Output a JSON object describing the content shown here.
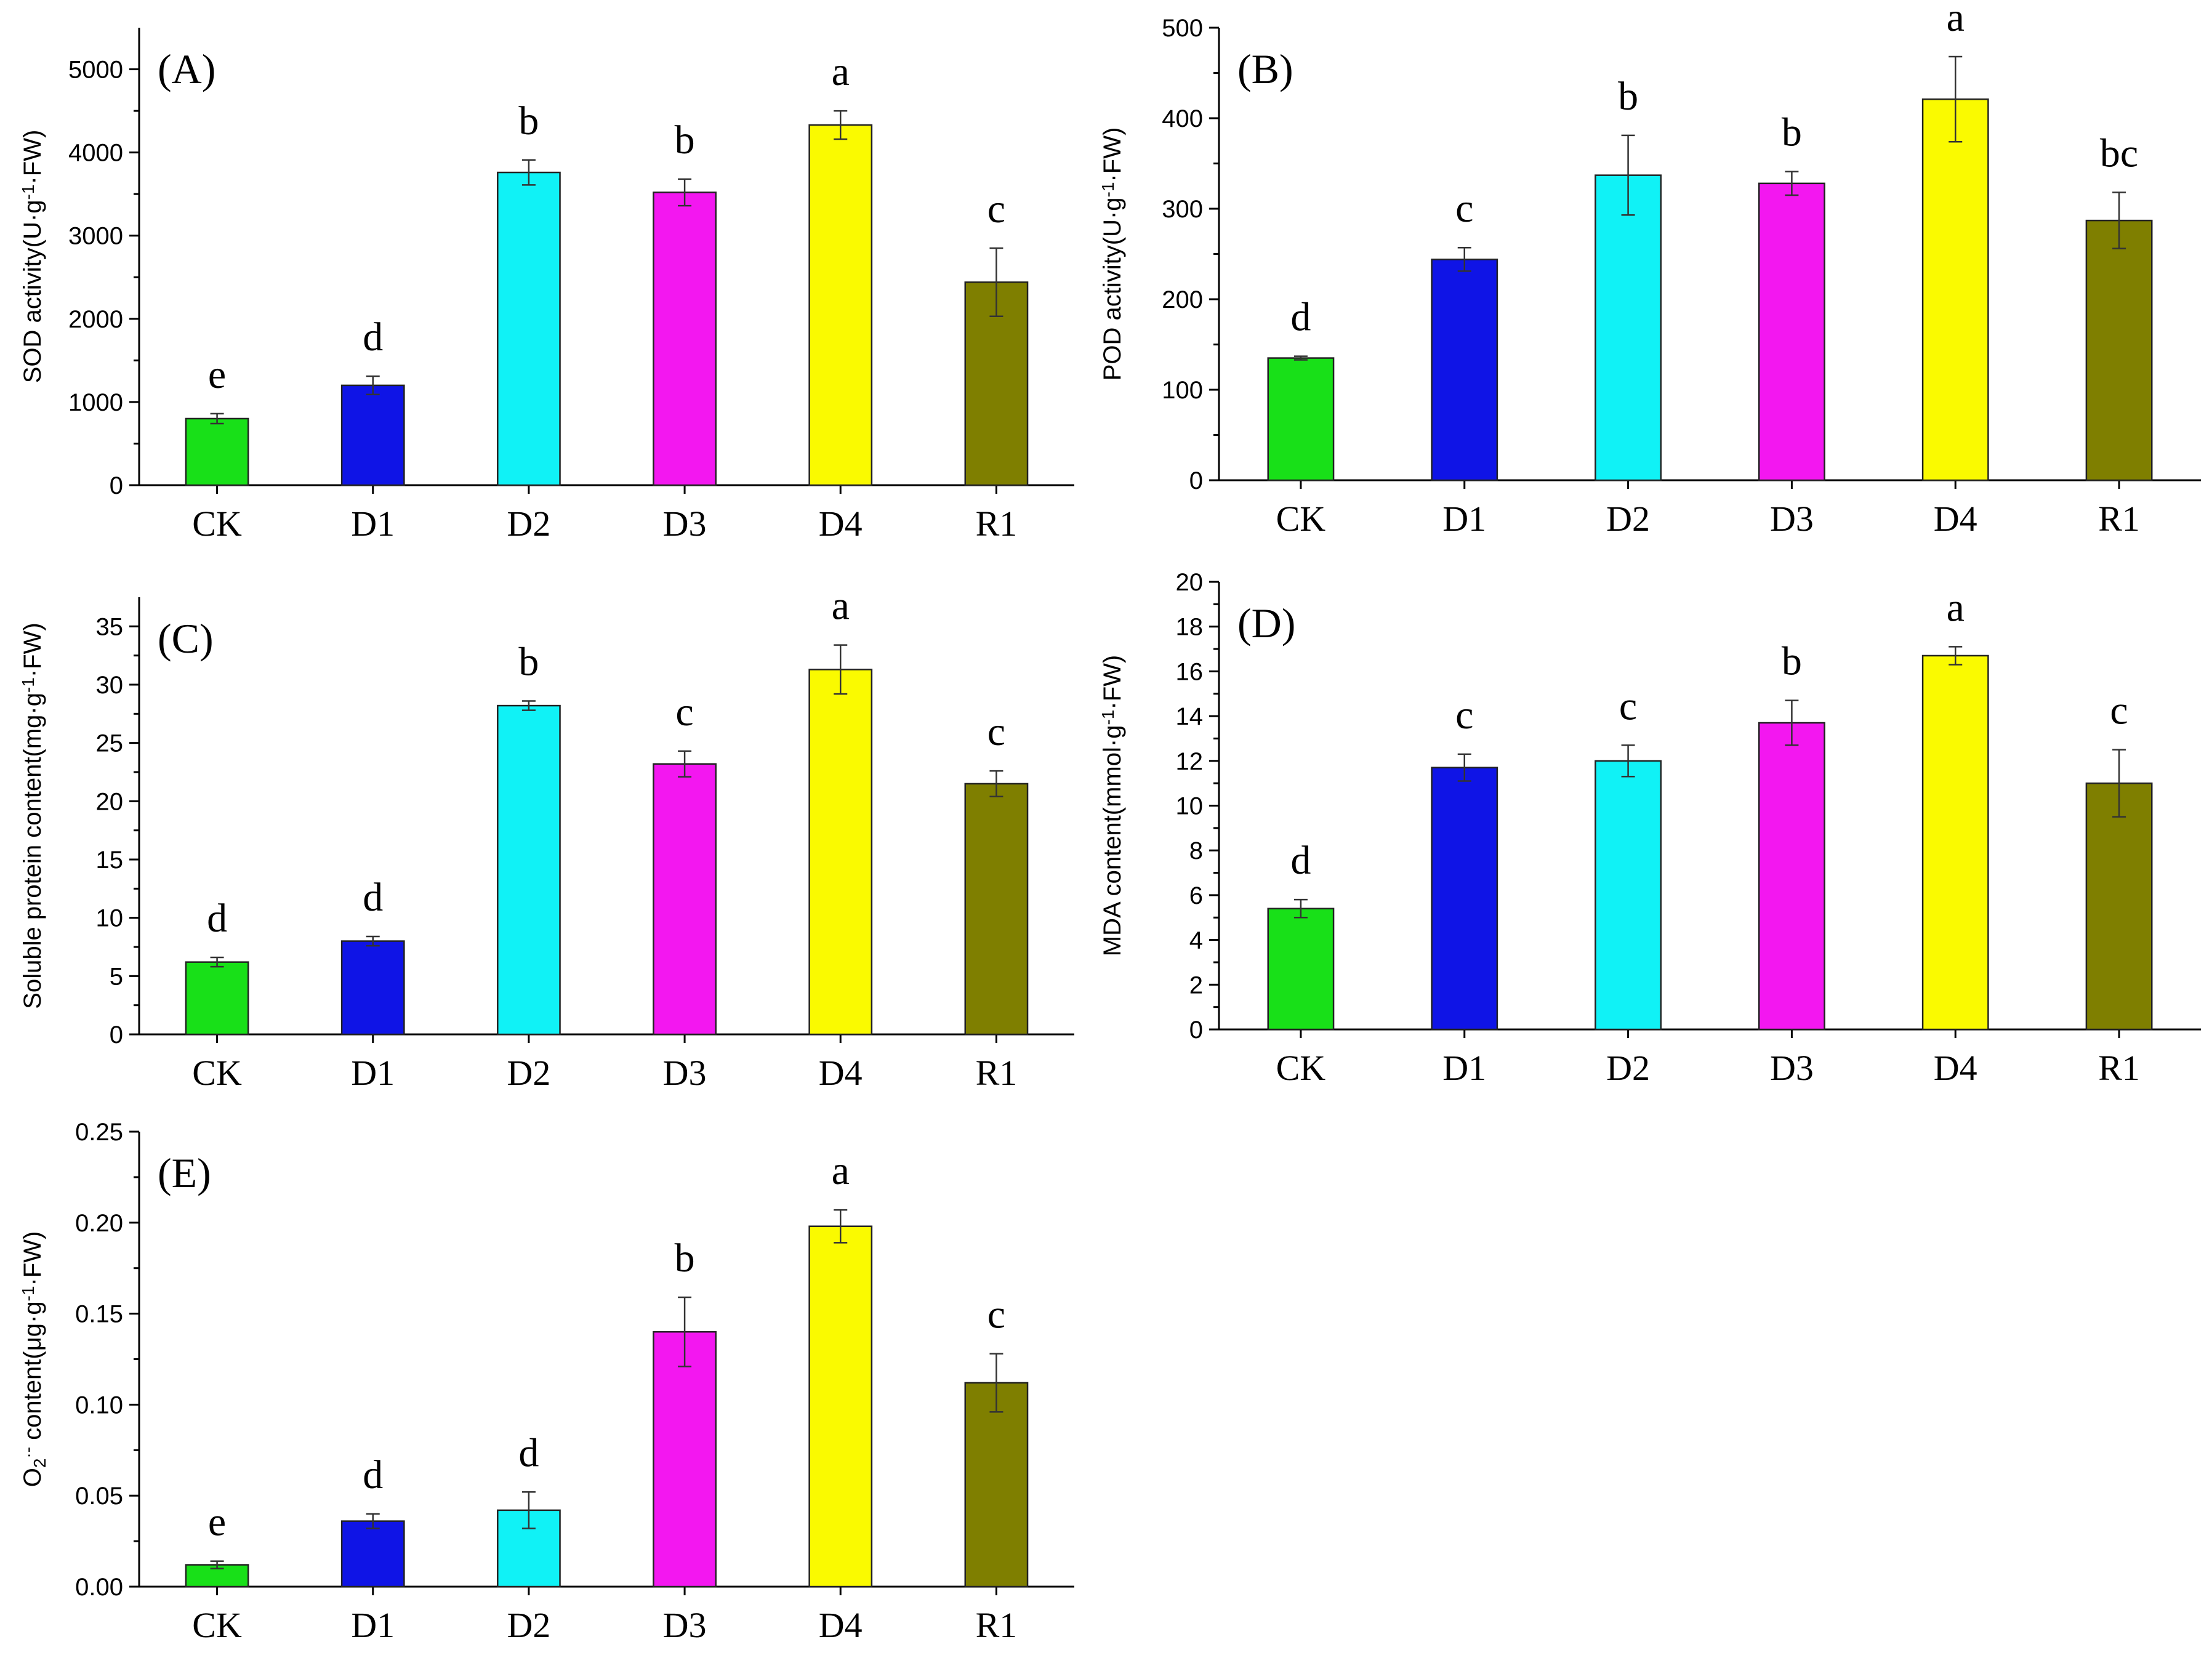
{
  "figure": {
    "title": ""
  },
  "chart_data": [
    {
      "type": "bar",
      "panel": "(A)",
      "ylabel_main": "SOD activity(U·g",
      "ylabel_sup": "-1",
      "ylabel_end": "·FW)",
      "ylim": [
        0,
        5500
      ],
      "yticks": [
        0,
        1000,
        2000,
        3000,
        4000,
        5000
      ],
      "ytick_labels": [
        "0",
        "1000",
        "2000",
        "3000",
        "4000",
        "5000"
      ],
      "categories": [
        "CK",
        "D1",
        "D2",
        "D3",
        "D4",
        "R1"
      ],
      "values": [
        800,
        1200,
        3760,
        3520,
        4330,
        2440
      ],
      "errors": [
        60,
        110,
        150,
        160,
        170,
        410
      ],
      "letters": [
        "e",
        "d",
        "b",
        "b",
        "a",
        "c"
      ]
    },
    {
      "type": "bar",
      "panel": "(B)",
      "ylabel_main": "POD activity(U·g",
      "ylabel_sup": "-1",
      "ylabel_end": "·FW)",
      "ylim": [
        0,
        500
      ],
      "yticks": [
        0,
        100,
        200,
        300,
        400,
        500
      ],
      "ytick_labels": [
        "0",
        "100",
        "200",
        "300",
        "400",
        "500"
      ],
      "categories": [
        "CK",
        "D1",
        "D2",
        "D3",
        "D4",
        "R1"
      ],
      "values": [
        135,
        244,
        337,
        328,
        421,
        287
      ],
      "errors": [
        2,
        13,
        44,
        13,
        47,
        31
      ],
      "letters": [
        "d",
        "c",
        "b",
        "b",
        "a",
        "bc"
      ]
    },
    {
      "type": "bar",
      "panel": "(C)",
      "ylabel_main": "Soluble protein content(mg·g",
      "ylabel_sup": "-1",
      "ylabel_end": "·FW)",
      "ylim": [
        0,
        37.5
      ],
      "yticks": [
        0,
        5,
        10,
        15,
        20,
        25,
        30,
        35
      ],
      "ytick_labels": [
        "0",
        "5",
        "10",
        "15",
        "20",
        "25",
        "30",
        "35"
      ],
      "categories": [
        "CK",
        "D1",
        "D2",
        "D3",
        "D4",
        "R1"
      ],
      "values": [
        6.2,
        8.0,
        28.2,
        23.2,
        31.3,
        21.5
      ],
      "errors": [
        0.4,
        0.4,
        0.4,
        1.1,
        2.1,
        1.1
      ],
      "letters": [
        "d",
        "d",
        "b",
        "c",
        "a",
        "c"
      ]
    },
    {
      "type": "bar",
      "panel": "(D)",
      "ylabel_main": "MDA content(mmol·g",
      "ylabel_sup": "-1",
      "ylabel_end": "·FW)",
      "ylim": [
        0,
        20
      ],
      "yticks": [
        0,
        2,
        4,
        6,
        8,
        10,
        12,
        14,
        16,
        18,
        20
      ],
      "ytick_labels": [
        "0",
        "2",
        "4",
        "6",
        "8",
        "10",
        "12",
        "14",
        "16",
        "18",
        "20"
      ],
      "categories": [
        "CK",
        "D1",
        "D2",
        "D3",
        "D4",
        "R1"
      ],
      "values": [
        5.4,
        11.7,
        12.0,
        13.7,
        16.7,
        11.0
      ],
      "errors": [
        0.4,
        0.6,
        0.7,
        1.0,
        0.4,
        1.5
      ],
      "letters": [
        "d",
        "c",
        "c",
        "b",
        "a",
        "c"
      ]
    },
    {
      "type": "bar",
      "panel": "(E)",
      "ylabel_main": "O",
      "ylabel_sub": "2",
      "ylabel_sup": "·-",
      "ylabel_end": " content(μg·g",
      "ylabel_sup2": "-1",
      "ylabel_end2": "·FW)",
      "ylim": [
        0,
        0.25
      ],
      "yticks": [
        0,
        0.05,
        0.1,
        0.15,
        0.2,
        0.25
      ],
      "ytick_labels": [
        "0.00",
        "0.05",
        "0.10",
        "0.15",
        "0.20",
        "0.25"
      ],
      "categories": [
        "CK",
        "D1",
        "D2",
        "D3",
        "D4",
        "R1"
      ],
      "values": [
        0.012,
        0.036,
        0.042,
        0.14,
        0.198,
        0.112
      ],
      "errors": [
        0.002,
        0.004,
        0.01,
        0.019,
        0.009,
        0.016
      ],
      "letters": [
        "e",
        "d",
        "d",
        "b",
        "a",
        "c"
      ]
    }
  ],
  "colors": {
    "CK": "#18e018",
    "D1": "#0f14e6",
    "D2": "#10f2f6",
    "D3": "#f317f0",
    "D4": "#fafa00",
    "R1": "#7f7f00"
  }
}
